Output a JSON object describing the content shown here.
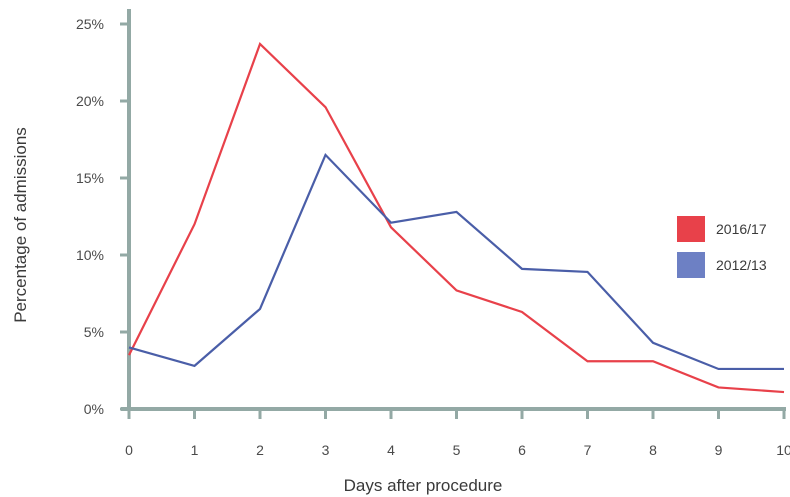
{
  "chart_data": {
    "type": "line",
    "title": "",
    "xlabel": "Days after procedure",
    "ylabel": "Percentage of admissions",
    "x": [
      0,
      1,
      2,
      3,
      4,
      5,
      6,
      7,
      8,
      9,
      10
    ],
    "x_tick_labels": [
      "0",
      "1",
      "2",
      "3",
      "4",
      "5",
      "6",
      "7",
      "8",
      "9",
      "10"
    ],
    "y_ticks": [
      0,
      5,
      10,
      15,
      20,
      25
    ],
    "y_tick_labels": [
      "0%",
      "5%",
      "10%",
      "15%",
      "20%",
      "25%"
    ],
    "xlim": [
      0,
      10
    ],
    "ylim": [
      0,
      25
    ],
    "grid": false,
    "legend_position": "right",
    "series": [
      {
        "name": "2016/17",
        "color": "#e8414a",
        "values": [
          3.5,
          12.0,
          23.7,
          19.6,
          11.8,
          7.7,
          6.3,
          3.1,
          3.1,
          1.4,
          1.1
        ]
      },
      {
        "name": "2012/13",
        "color": "#4a5ea8",
        "values": [
          4.0,
          2.8,
          6.5,
          16.5,
          12.1,
          12.8,
          9.1,
          8.9,
          4.3,
          2.6,
          2.6
        ]
      }
    ],
    "legend_swatch_colors": [
      "#e8414a",
      "#6d80c4"
    ],
    "axis_color": "#93a9a5"
  }
}
